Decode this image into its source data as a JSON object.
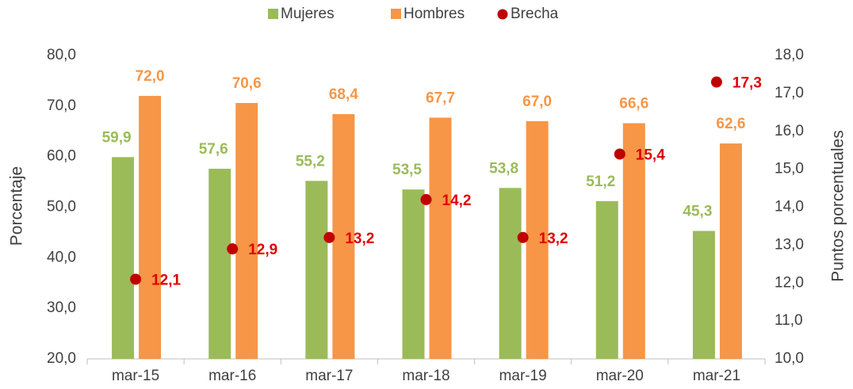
{
  "chart_data": {
    "type": "bar",
    "categories": [
      "mar-15",
      "mar-16",
      "mar-17",
      "mar-18",
      "mar-19",
      "mar-20",
      "mar-21"
    ],
    "series": [
      {
        "name": "Mujeres",
        "color": "#9bbb59",
        "values": [
          59.9,
          57.6,
          55.2,
          53.5,
          53.8,
          51.2,
          45.3
        ],
        "value_labels": [
          "59,9",
          "57,6",
          "55,2",
          "53,5",
          "53,8",
          "51,2",
          "45,3"
        ]
      },
      {
        "name": "Hombres",
        "color": "#f79646",
        "values": [
          72.0,
          70.6,
          68.4,
          67.7,
          67.0,
          66.6,
          62.6
        ],
        "value_labels": [
          "72,0",
          "70,6",
          "68,4",
          "67,7",
          "67,0",
          "66,6",
          "62,6"
        ]
      },
      {
        "name": "Brecha",
        "type": "scatter",
        "axis": "y2",
        "color": "#c00000",
        "label_color": "#e00000",
        "values": [
          12.1,
          12.9,
          13.2,
          14.2,
          13.2,
          15.4,
          17.3
        ],
        "value_labels": [
          "12,1",
          "12,9",
          "13,2",
          "14,2",
          "13,2",
          "15,4",
          "17,3"
        ]
      }
    ],
    "ylabel": "Porcentaje",
    "y2label": "Puntos porcentuales",
    "ylim": [
      20,
      80
    ],
    "yticks": [
      {
        "value": 20,
        "label": "20,0"
      },
      {
        "value": 30,
        "label": "30,0"
      },
      {
        "value": 40,
        "label": "40,0"
      },
      {
        "value": 50,
        "label": "50,0"
      },
      {
        "value": 60,
        "label": "60,0"
      },
      {
        "value": 70,
        "label": "70,0"
      },
      {
        "value": 80,
        "label": "80,0"
      }
    ],
    "y2lim": [
      10,
      18
    ],
    "y2ticks": [
      {
        "value": 10,
        "label": "10,0"
      },
      {
        "value": 11,
        "label": "11,0"
      },
      {
        "value": 12,
        "label": "12,0"
      },
      {
        "value": 13,
        "label": "13,0"
      },
      {
        "value": 14,
        "label": "14,0"
      },
      {
        "value": 15,
        "label": "15,0"
      },
      {
        "value": 16,
        "label": "16,0"
      },
      {
        "value": 17,
        "label": "17,0"
      },
      {
        "value": 18,
        "label": "18,0"
      }
    ],
    "legend": "top",
    "grid": false
  }
}
